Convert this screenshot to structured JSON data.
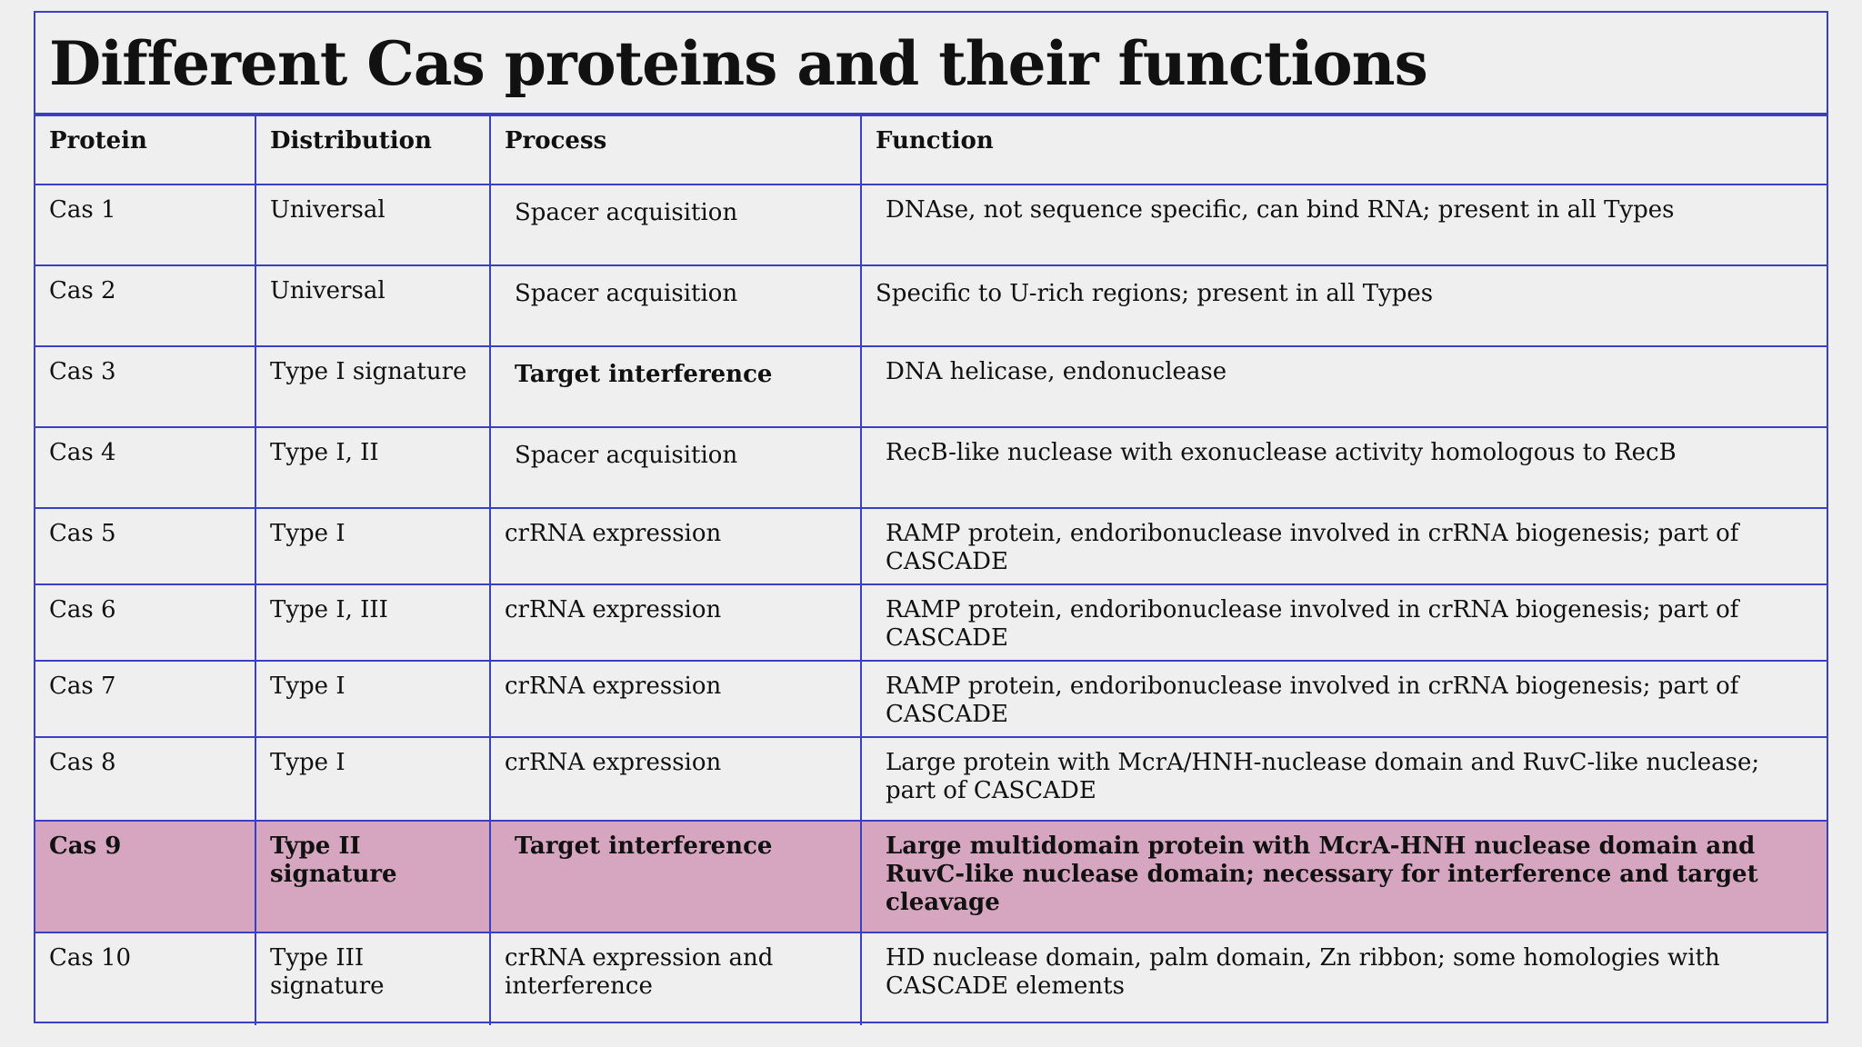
{
  "title": "Different Cas proteins and their functions",
  "table": {
    "headers": [
      "Protein",
      "Distribution",
      "Process",
      "Function"
    ],
    "rows": [
      {
        "protein": "Cas 1",
        "distribution": "Universal",
        "process": "Spacer acquisition",
        "function": "DNAse, not sequence specific, can bind RNA; present in all Types"
      },
      {
        "protein": "Cas 2",
        "distribution": "Universal",
        "process": "Spacer acquisition",
        "function": "Specific to U-rich regions; present in all Types"
      },
      {
        "protein": "Cas 3",
        "distribution": "Type I signature",
        "process": "Target interference",
        "function": "DNA helicase, endonuclease"
      },
      {
        "protein": "Cas 4",
        "distribution": "Type I, II",
        "process": "Spacer acquisition",
        "function": "RecB-like nuclease with exonuclease activity homologous to RecB"
      },
      {
        "protein": "Cas 5",
        "distribution": "Type I",
        "process": "crRNA expression",
        "function": "RAMP protein, endoribonuclease involved in crRNA biogenesis; part of CASCADE"
      },
      {
        "protein": "Cas 6",
        "distribution": "Type I, III",
        "process": "crRNA expression",
        "function": "RAMP protein, endoribonuclease involved in crRNA biogenesis; part of CASCADE"
      },
      {
        "protein": "Cas 7",
        "distribution": "Type I",
        "process": "crRNA expression",
        "function": "RAMP protein, endoribonuclease involved in crRNA biogenesis; part of CASCADE"
      },
      {
        "protein": "Cas 8",
        "distribution": "Type I",
        "process": "crRNA expression",
        "function": "Large protein with McrA/HNH-nuclease domain and RuvC-like nuclease; part of  CASCADE"
      },
      {
        "protein": "Cas 9",
        "distribution": "Type II signature",
        "process": "Target interference",
        "function": "Large multidomain protein with McrA-HNH nuclease domain and RuvC-like  nuclease domain; necessary for interference and target cleavage"
      },
      {
        "protein": "Cas 10",
        "distribution": "Type III signature",
        "process": "crRNA expression and interference",
        "function": "HD nuclease domain, palm domain, Zn ribbon; some homologies with CASCADE  elements"
      }
    ]
  },
  "colors": {
    "border": "#3b3fc1",
    "highlight_row": "#d6a5bf",
    "background": "#efeff0"
  }
}
